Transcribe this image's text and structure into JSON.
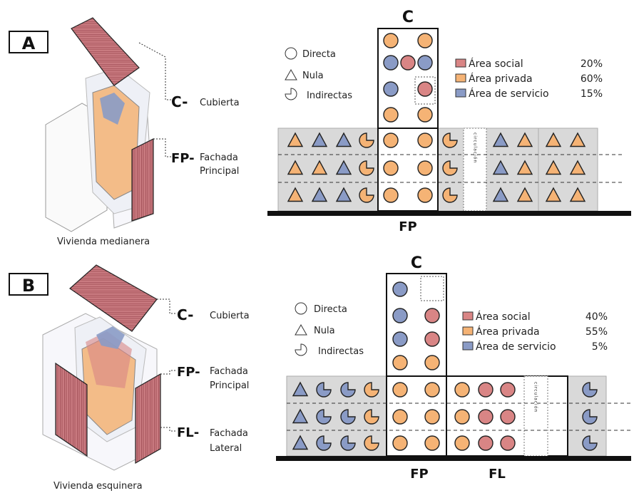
{
  "colors": {
    "social": "#d98585",
    "privada": "#f5b375",
    "servicio": "#8a9bc6",
    "band": "#d9d9d9",
    "stroke": "#222222",
    "wall": "#c97a80",
    "wallDark": "#8e3b45"
  },
  "panelA": {
    "badge": "A",
    "iso": {
      "c_code": "C-",
      "c_label": "Cubierta",
      "fp_code": "FP-",
      "fp_label1": "Fachada",
      "fp_label2": "Principal",
      "caption": "Vivienda medianera"
    },
    "plan": {
      "top_label": "C",
      "bottom_label": "FP",
      "circ_label": "circulación"
    },
    "legend": {
      "symbols": [
        "Directa",
        "Nula",
        "Indirectas"
      ],
      "areas": [
        {
          "name": "Área social",
          "pct": "20%",
          "color": "social"
        },
        {
          "name": "Área privada",
          "pct": "60%",
          "color": "privada"
        },
        {
          "name": "Área de servicio",
          "pct": "15%",
          "color": "servicio"
        }
      ]
    },
    "tower_rows": [
      [
        "privada",
        "privada"
      ],
      [
        "servicio",
        "social",
        "servicio"
      ],
      [
        "servicio",
        "social"
      ],
      [
        "privada",
        "privada"
      ]
    ],
    "band_rows": [
      {
        "left": [
          [
            "tri",
            "privada"
          ],
          [
            "tri",
            "servicio"
          ],
          [
            "tri",
            "servicio"
          ],
          [
            "pac",
            "privada"
          ]
        ],
        "center": [
          [
            "cir",
            "privada"
          ],
          [
            "cir",
            "privada"
          ]
        ],
        "afterCenter": [
          [
            "pac",
            "privada"
          ]
        ],
        "right1": [
          [
            "tri",
            "servicio"
          ],
          [
            "tri",
            "privada"
          ]
        ],
        "right2": [
          [
            "tri",
            "privada"
          ],
          [
            "tri",
            "privada"
          ]
        ]
      },
      {
        "left": [
          [
            "tri",
            "privada"
          ],
          [
            "tri",
            "privada"
          ],
          [
            "tri",
            "servicio"
          ],
          [
            "pac",
            "privada"
          ]
        ],
        "center": [
          [
            "cir",
            "privada"
          ],
          [
            "cir",
            "privada"
          ]
        ],
        "afterCenter": [
          [
            "pac",
            "privada"
          ]
        ],
        "right1": [
          [
            "tri",
            "servicio"
          ],
          [
            "tri",
            "privada"
          ]
        ],
        "right2": [
          [
            "tri",
            "privada"
          ],
          [
            "tri",
            "privada"
          ]
        ]
      },
      {
        "left": [
          [
            "tri",
            "privada"
          ],
          [
            "tri",
            "servicio"
          ],
          [
            "tri",
            "servicio"
          ],
          [
            "pac",
            "privada"
          ]
        ],
        "center": [
          [
            "cir",
            "privada"
          ],
          [
            "cir",
            "privada"
          ]
        ],
        "afterCenter": [
          [
            "pac",
            "privada"
          ]
        ],
        "right1": [
          [
            "tri",
            "servicio"
          ],
          [
            "tri",
            "privada"
          ]
        ],
        "right2": [
          [
            "tri",
            "privada"
          ],
          [
            "tri",
            "privada"
          ]
        ]
      }
    ]
  },
  "panelB": {
    "badge": "B",
    "iso": {
      "c_code": "C-",
      "c_label": "Cubierta",
      "fp_code": "FP-",
      "fp_label1": "Fachada",
      "fp_label2": "Principal",
      "fl_code": "FL-",
      "fl_label1": "Fachada",
      "fl_label2": "Lateral",
      "caption": "Vivienda esquinera"
    },
    "plan": {
      "top_label": "C",
      "bottom_label1": "FP",
      "bottom_label2": "FL",
      "circ_label": "circulación"
    },
    "legend": {
      "symbols": [
        "Directa",
        "Nula",
        "Indirectas"
      ],
      "areas": [
        {
          "name": "Área social",
          "pct": "40%",
          "color": "social"
        },
        {
          "name": "Área privada",
          "pct": "55%",
          "color": "privada"
        },
        {
          "name": "Área de servicio",
          "pct": "5%",
          "color": "servicio"
        }
      ]
    },
    "tower_rows": [
      [
        "servicio"
      ],
      [
        "servicio",
        "social"
      ],
      [
        "servicio",
        "social"
      ],
      [
        "privada",
        "privada"
      ]
    ],
    "band_rows": [
      {
        "left": [
          [
            "tri",
            "servicio"
          ],
          [
            "pac",
            "servicio"
          ],
          [
            "pac",
            "servicio"
          ],
          [
            "pac",
            "privada"
          ]
        ],
        "center": [
          [
            "cir",
            "privada"
          ],
          [
            "cir",
            "privada"
          ]
        ],
        "fl": [
          [
            "cir",
            "privada"
          ],
          [
            "cir",
            "social"
          ],
          [
            "cir",
            "social"
          ]
        ],
        "right": [
          [
            "pac",
            "servicio"
          ]
        ]
      },
      {
        "left": [
          [
            "tri",
            "servicio"
          ],
          [
            "pac",
            "servicio"
          ],
          [
            "pac",
            "servicio"
          ],
          [
            "pac",
            "privada"
          ]
        ],
        "center": [
          [
            "cir",
            "privada"
          ],
          [
            "cir",
            "privada"
          ]
        ],
        "fl": [
          [
            "cir",
            "privada"
          ],
          [
            "cir",
            "social"
          ],
          [
            "cir",
            "social"
          ]
        ],
        "right": [
          [
            "pac",
            "servicio"
          ]
        ]
      },
      {
        "left": [
          [
            "tri",
            "servicio"
          ],
          [
            "pac",
            "servicio"
          ],
          [
            "pac",
            "servicio"
          ],
          [
            "pac",
            "privada"
          ]
        ],
        "center": [
          [
            "cir",
            "privada"
          ],
          [
            "cir",
            "privada"
          ]
        ],
        "fl": [
          [
            "cir",
            "privada"
          ],
          [
            "cir",
            "social"
          ],
          [
            "cir",
            "social"
          ]
        ],
        "right": [
          [
            "pac",
            "servicio"
          ]
        ]
      }
    ]
  }
}
